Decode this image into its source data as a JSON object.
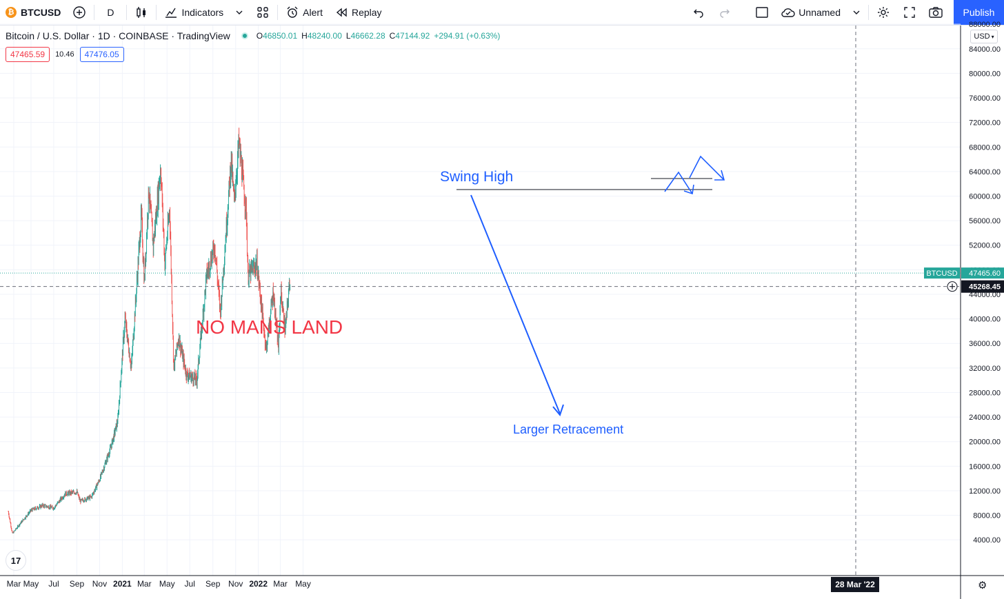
{
  "toolbar": {
    "symbol": "BTCUSD",
    "interval": "D",
    "indicators_label": "Indicators",
    "alert_label": "Alert",
    "replay_label": "Replay",
    "layout_name": "Unnamed",
    "publish_label": "Publish"
  },
  "legend": {
    "title": "Bitcoin / U.S. Dollar · 1D · COINBASE · TradingView",
    "open_label": "O",
    "open": "46850.01",
    "high_label": "H",
    "high": "48240.00",
    "low_label": "L",
    "low": "46662.28",
    "close_label": "C",
    "close": "47144.92",
    "change": "+294.91 (+0.63%)",
    "bid": "47465.59",
    "spread": "10.46",
    "ask": "47476.05"
  },
  "currency": "USD",
  "colors": {
    "up": "#26a69a",
    "down": "#ef5350",
    "accent": "#2962ff",
    "annotation_blue": "#1e5eff",
    "annotation_red": "#f23645"
  },
  "chart_data": {
    "type": "candlestick",
    "symbol": "BTCUSD",
    "price_axis_ticks": [
      4000,
      8000,
      12000,
      16000,
      20000,
      24000,
      28000,
      32000,
      36000,
      40000,
      44000,
      48000,
      52000,
      56000,
      60000,
      64000,
      68000,
      72000,
      76000,
      80000,
      84000,
      88000
    ],
    "time_axis_ticks": [
      "Mar",
      "May",
      "Jul",
      "Sep",
      "Nov",
      "2021",
      "Mar",
      "May",
      "Jul",
      "Sep",
      "Nov",
      "2022",
      "Mar",
      "May"
    ],
    "ylim": [
      2000,
      92000
    ],
    "last_price_label": "BTCUSD",
    "last_price": "47465.60",
    "crosshair_price": "45268.45",
    "crosshair_date": "28 Mar '22",
    "grid": true,
    "annotations": [
      {
        "text": "Swing High",
        "color": "#1e5eff"
      },
      {
        "text": "Larger Retracement",
        "color": "#1e5eff"
      },
      {
        "text": "NO MANS LAND",
        "color": "#f23645"
      }
    ],
    "price_path": [
      {
        "date": "2020-03-01",
        "price": 8600
      },
      {
        "date": "2020-03-12",
        "price": 5000
      },
      {
        "date": "2020-04-01",
        "price": 6600
      },
      {
        "date": "2020-05-01",
        "price": 8800
      },
      {
        "date": "2020-06-01",
        "price": 9600
      },
      {
        "date": "2020-07-01",
        "price": 9200
      },
      {
        "date": "2020-08-01",
        "price": 11500
      },
      {
        "date": "2020-09-01",
        "price": 11800
      },
      {
        "date": "2020-09-10",
        "price": 10300
      },
      {
        "date": "2020-10-10",
        "price": 11000
      },
      {
        "date": "2020-11-01",
        "price": 13800
      },
      {
        "date": "2020-12-01",
        "price": 19000
      },
      {
        "date": "2020-12-20",
        "price": 23500
      },
      {
        "date": "2021-01-08",
        "price": 40000
      },
      {
        "date": "2021-01-25",
        "price": 32000
      },
      {
        "date": "2021-02-21",
        "price": 57000
      },
      {
        "date": "2021-03-01",
        "price": 46000
      },
      {
        "date": "2021-03-13",
        "price": 61000
      },
      {
        "date": "2021-03-25",
        "price": 52000
      },
      {
        "date": "2021-04-14",
        "price": 64800
      },
      {
        "date": "2021-04-25",
        "price": 49000
      },
      {
        "date": "2021-05-08",
        "price": 58000
      },
      {
        "date": "2021-05-19",
        "price": 32000
      },
      {
        "date": "2021-06-01",
        "price": 37000
      },
      {
        "date": "2021-06-22",
        "price": 31000
      },
      {
        "date": "2021-07-20",
        "price": 30000
      },
      {
        "date": "2021-08-15",
        "price": 47000
      },
      {
        "date": "2021-09-06",
        "price": 52000
      },
      {
        "date": "2021-09-21",
        "price": 41000
      },
      {
        "date": "2021-10-20",
        "price": 66000
      },
      {
        "date": "2021-10-28",
        "price": 59000
      },
      {
        "date": "2021-11-10",
        "price": 68700
      },
      {
        "date": "2021-11-30",
        "price": 57000
      },
      {
        "date": "2021-12-04",
        "price": 47000
      },
      {
        "date": "2021-12-28",
        "price": 49000
      },
      {
        "date": "2022-01-22",
        "price": 35000
      },
      {
        "date": "2022-02-10",
        "price": 44500
      },
      {
        "date": "2022-02-24",
        "price": 35000
      },
      {
        "date": "2022-03-02",
        "price": 44500
      },
      {
        "date": "2022-03-14",
        "price": 38000
      },
      {
        "date": "2022-03-28",
        "price": 47400
      }
    ]
  }
}
